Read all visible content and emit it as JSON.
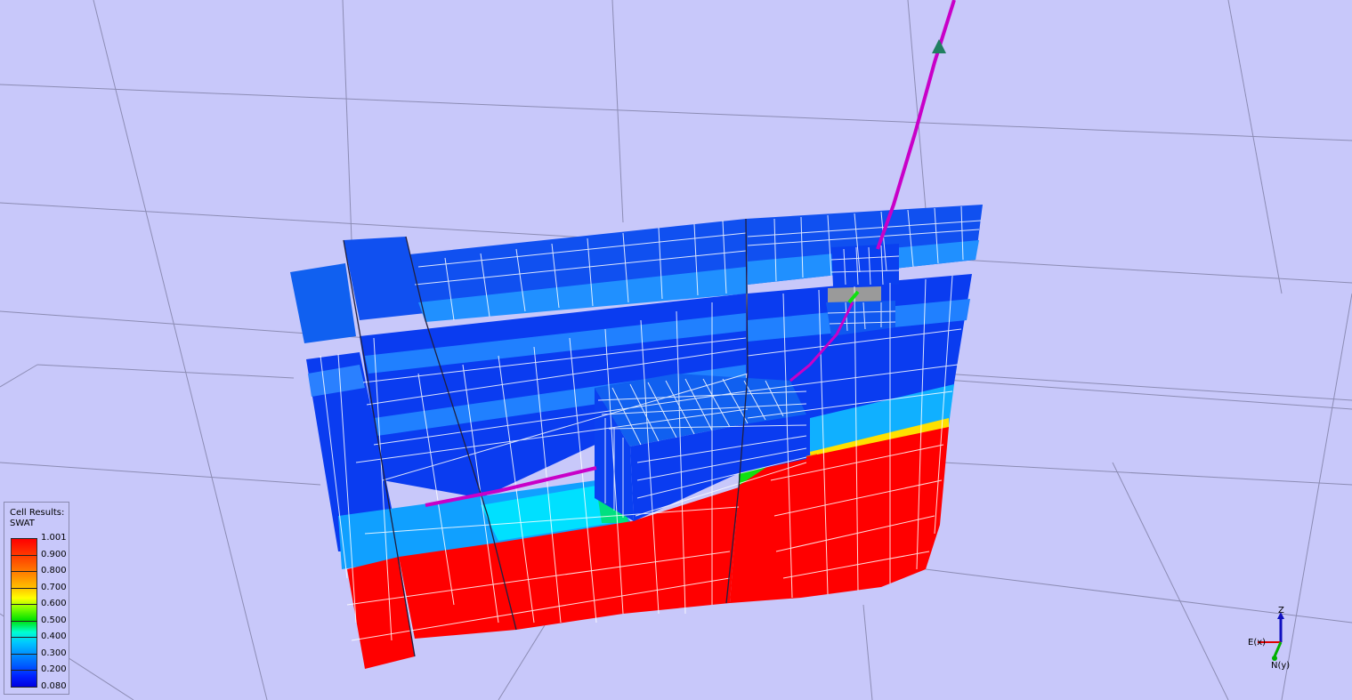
{
  "legend": {
    "title_line1": "Cell Results:",
    "title_line2": "SWAT",
    "ticks": [
      "1.001",
      "0.900",
      "0.800",
      "0.700",
      "0.600",
      "0.500",
      "0.400",
      "0.300",
      "0.200",
      "0.080"
    ]
  },
  "axes": {
    "z_label": "Z",
    "x_label": "E(x)",
    "y_label": "N(y)"
  },
  "colors": {
    "background": "#c8c8fa",
    "grid_line": "#8c8cb4",
    "water_high": "#ff0000",
    "water_low": "#0000e0",
    "well_path": "#c800c8"
  }
}
